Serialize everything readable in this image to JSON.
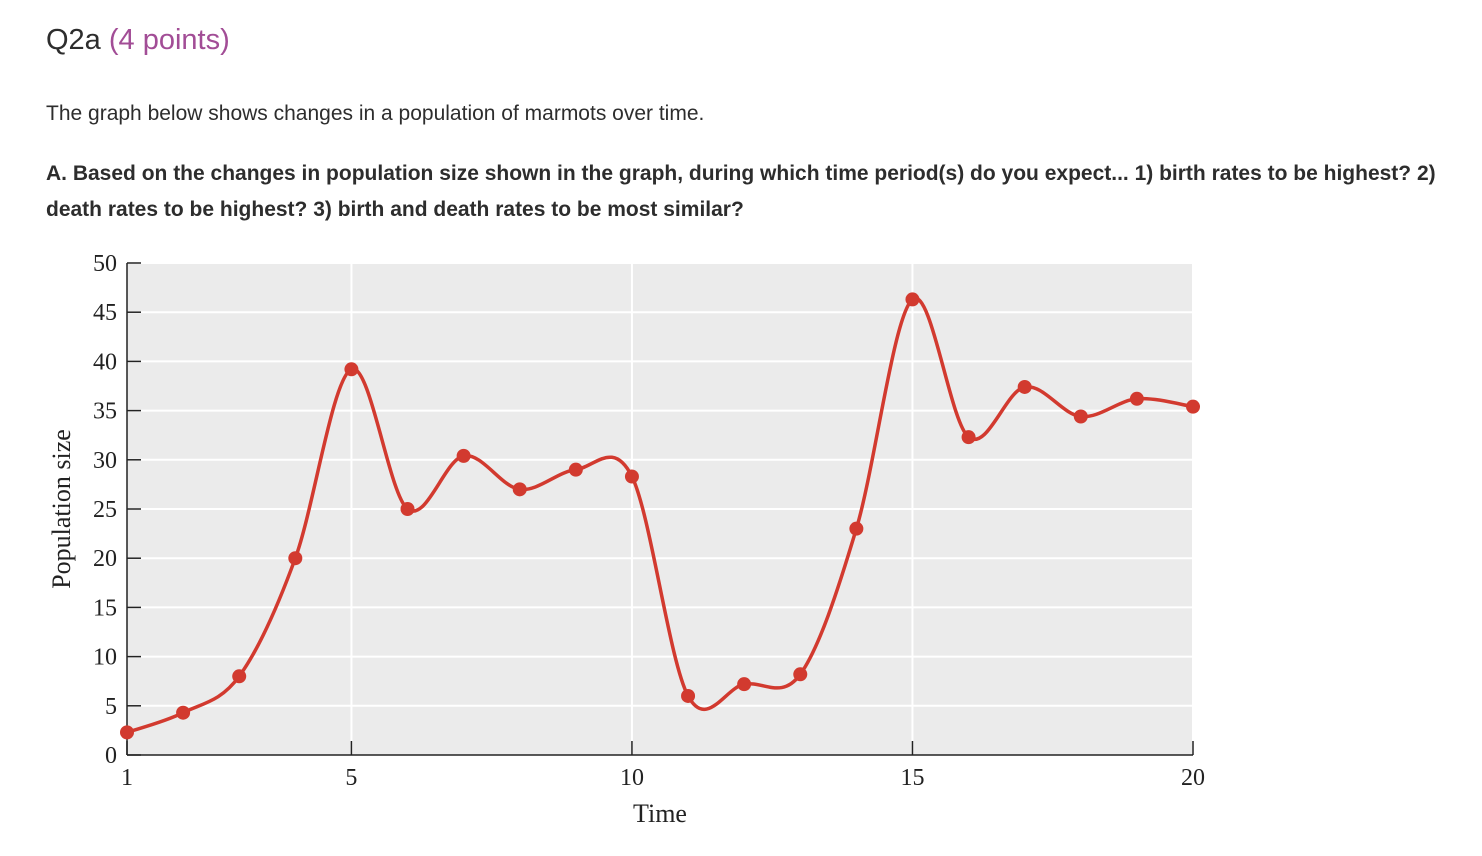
{
  "question": {
    "id": "Q2a",
    "points": "(4 points)",
    "intro": "The graph below shows changes in a population of marmots over time.",
    "prompt": "A. Based on the changes in population size shown in the graph, during which time period(s) do you expect... 1) birth rates to be highest? 2) death rates to be highest? 3) birth and death rates to be most similar?"
  },
  "colors": {
    "line": "#d23a2f",
    "plot_bg": "#ebebeb",
    "grid": "#ffffff"
  },
  "chart_data": {
    "type": "line",
    "title": "",
    "xlabel": "Time",
    "ylabel": "Population size",
    "xlim": [
      1,
      20
    ],
    "ylim": [
      0,
      50
    ],
    "x_ticks": [
      1,
      5,
      10,
      15,
      20
    ],
    "y_ticks": [
      0,
      5,
      10,
      15,
      20,
      25,
      30,
      35,
      40,
      45,
      50
    ],
    "grid": true,
    "legend": "none",
    "series": [
      {
        "x": [
          1,
          2,
          3,
          4,
          5,
          6,
          7,
          8,
          9,
          10,
          11,
          12,
          13,
          14,
          15,
          16,
          17,
          18,
          19,
          20
        ],
        "values": [
          2.3,
          4.3,
          8,
          20,
          39.2,
          25,
          30.4,
          27,
          29,
          28.3,
          6,
          7.2,
          8.2,
          23,
          46.3,
          32.3,
          37.4,
          34.4,
          36.2,
          35.4
        ]
      }
    ]
  }
}
